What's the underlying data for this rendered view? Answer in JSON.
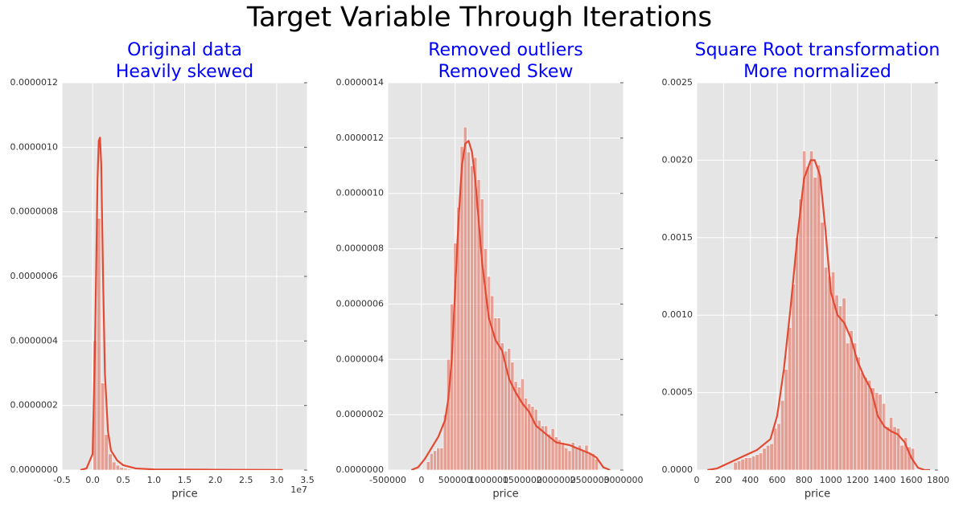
{
  "title": "Target Variable Through Iterations",
  "chart_data": [
    {
      "type": "histogram",
      "title": [
        "Original data",
        "Heavily skewed"
      ],
      "title_color": "#0000ff",
      "xlabel": "price",
      "x_offset_label": "1e7",
      "bins": [
        0.0075,
        0.0695,
        0.1315,
        0.1935,
        0.2555,
        0.3175,
        0.3795,
        0.4415,
        0.5035,
        0.5655,
        0.6275,
        0.6895,
        0.7515,
        0.8135,
        0.8755,
        0.9375,
        0.9995,
        1.0615,
        1.1235,
        1.1855,
        1.2475,
        1.3095,
        1.3715,
        1.4335,
        1.4955,
        1.5575,
        1.6195,
        1.6815,
        1.7435,
        1.8055,
        1.8675,
        1.9295,
        1.9915,
        2.0535,
        2.1155,
        2.1775,
        2.2395,
        2.3015,
        2.3635,
        2.4255,
        2.4875,
        2.5495,
        2.6115,
        2.6735,
        2.7355,
        2.7975,
        2.8595,
        2.9215,
        2.9835,
        3.0455,
        3.1075
      ],
      "values": [
        4e-07,
        7.8e-07,
        2.7e-07,
        1.1e-07,
        5e-08,
        2.5e-08,
        1.5e-08,
        8e-09,
        5e-09,
        3e-09,
        2e-09,
        1.5e-09,
        1e-09,
        1e-09,
        5e-10,
        5e-10,
        5e-10,
        3e-10,
        3e-10,
        2e-10,
        2e-10,
        1e-10,
        1e-10,
        1e-10,
        1e-10,
        0,
        0,
        0,
        0,
        0,
        0,
        0,
        0,
        0,
        0,
        0,
        0,
        0,
        0,
        0,
        0,
        0,
        0,
        0,
        0,
        0,
        0,
        0,
        0,
        1e-10
      ],
      "color": "#e24a33",
      "kde": {
        "x": [
          -0.2,
          -0.1,
          0,
          0.04,
          0.08,
          0.1,
          0.12,
          0.14,
          0.17,
          0.2,
          0.25,
          0.3,
          0.4,
          0.5,
          0.7,
          1,
          2,
          3.1
        ],
        "y": [
          0,
          5e-09,
          5e-08,
          4e-07,
          9e-07,
          1.02e-06,
          1.03e-06,
          9.5e-07,
          6e-07,
          3e-07,
          1.2e-07,
          6e-08,
          3e-08,
          1.5e-08,
          5e-09,
          2e-09,
          1e-09,
          5e-10
        ],
        "color": "#e24a33"
      },
      "xlim": [
        -0.5,
        3.5
      ],
      "ylim": [
        0,
        1.2e-06
      ],
      "xticks": [
        -0.5,
        {
          "value": 0,
          "label": "0.0"
        },
        0.5,
        {
          "value": 1,
          "label": "1.0"
        },
        1.5,
        {
          "value": 2,
          "label": "2.0"
        },
        2.5,
        {
          "value": 3,
          "label": "3.0"
        },
        3.5
      ],
      "yticks": [
        {
          "value": 0,
          "label": "0.0000000"
        },
        {
          "value": 2e-07,
          "label": "0.0000002"
        },
        {
          "value": 4e-07,
          "label": "0.0000004"
        },
        {
          "value": 6e-07,
          "label": "0.0000006"
        },
        {
          "value": 8e-07,
          "label": "0.0000008"
        },
        {
          "value": 1e-06,
          "label": "0.0000010"
        },
        {
          "value": 1.2e-06,
          "label": "0.0000012"
        }
      ],
      "grid": true
    },
    {
      "type": "histogram",
      "title": [
        "Removed outliers",
        "Removed Skew"
      ],
      "title_color": "#0000ff",
      "xlabel": "price",
      "bins": [
        75000,
        125000,
        175000,
        225000,
        275000,
        325000,
        375000,
        425000,
        475000,
        525000,
        575000,
        625000,
        675000,
        725000,
        775000,
        825000,
        875000,
        925000,
        975000,
        1025000,
        1075000,
        1125000,
        1175000,
        1225000,
        1275000,
        1325000,
        1375000,
        1425000,
        1475000,
        1525000,
        1575000,
        1625000,
        1675000,
        1725000,
        1775000,
        1825000,
        1875000,
        1925000,
        1975000,
        2025000,
        2075000,
        2125000,
        2175000,
        2225000,
        2275000,
        2325000,
        2375000,
        2425000,
        2475000,
        2525000,
        2575000,
        2625000
      ],
      "values": [
        3e-08,
        6e-08,
        7e-08,
        8e-08,
        8e-08,
        2e-07,
        4e-07,
        6e-07,
        8.2e-07,
        9.5e-07,
        1.17e-06,
        1.24e-06,
        1.15e-06,
        1.1e-06,
        1.13e-06,
        1.05e-06,
        9.8e-07,
        8e-07,
        7e-07,
        6.3e-07,
        5.5e-07,
        5.5e-07,
        4.6e-07,
        4.3e-07,
        4.4e-07,
        3.9e-07,
        3.2e-07,
        3e-07,
        3.3e-07,
        2.6e-07,
        2.4e-07,
        2.3e-07,
        2.2e-07,
        1.8e-07,
        1.6e-07,
        1.6e-07,
        1.3e-07,
        1.5e-07,
        1.2e-07,
        1.1e-07,
        1e-07,
        8e-08,
        7e-08,
        1e-07,
        8e-08,
        9e-08,
        7e-08,
        9e-08,
        6e-08,
        6e-08,
        4e-08
      ],
      "color": "#e24a33",
      "kde": {
        "x": [
          -150000,
          -50000,
          50000,
          150000,
          250000,
          350000,
          400000,
          450000,
          500000,
          550000,
          600000,
          650000,
          700000,
          750000,
          800000,
          900000,
          1000000,
          1100000,
          1200000,
          1300000,
          1400000,
          1500000,
          1600000,
          1700000,
          1800000,
          1900000,
          2000000,
          2100000,
          2200000,
          2300000,
          2400000,
          2500000,
          2600000,
          2700000,
          2800000
        ],
        "y": [
          0,
          1e-08,
          4e-08,
          8e-08,
          1.2e-07,
          1.8e-07,
          2.6e-07,
          4e-07,
          6.5e-07,
          9e-07,
          1.1e-06,
          1.18e-06,
          1.19e-06,
          1.15e-06,
          1.05e-06,
          7.5e-07,
          5.5e-07,
          4.7e-07,
          4.3e-07,
          3.3e-07,
          2.8e-07,
          2.4e-07,
          2.1e-07,
          1.6e-07,
          1.4e-07,
          1.2e-07,
          1e-07,
          9.5e-08,
          9e-08,
          8e-08,
          7e-08,
          6e-08,
          4.5e-08,
          1e-08,
          0
        ],
        "color": "#e24a33"
      },
      "xlim": [
        -500000,
        3000000
      ],
      "ylim": [
        0,
        1.4e-06
      ],
      "xticks": [
        -500000,
        0,
        500000,
        1000000,
        1500000,
        2000000,
        2500000,
        3000000
      ],
      "yticks": [
        {
          "value": 0,
          "label": "0.0000000"
        },
        {
          "value": 2e-07,
          "label": "0.0000002"
        },
        {
          "value": 4e-07,
          "label": "0.0000004"
        },
        {
          "value": 6e-07,
          "label": "0.0000006"
        },
        {
          "value": 8e-07,
          "label": "0.0000008"
        },
        {
          "value": 1e-06,
          "label": "0.0000010"
        },
        {
          "value": 1.2e-06,
          "label": "0.0000012"
        },
        {
          "value": 1.4e-06,
          "label": "0.0000014"
        }
      ],
      "grid": true
    },
    {
      "type": "histogram",
      "title": [
        "Square Root transformation",
        "More normalized"
      ],
      "title_color": "#0000ff",
      "xlabel": "price",
      "bins": [
        275,
        302,
        329,
        356,
        383,
        410,
        437,
        464,
        491,
        518,
        545,
        572,
        599,
        626,
        653,
        680,
        707,
        734,
        761,
        788,
        815,
        842,
        869,
        896,
        923,
        950,
        977,
        1004,
        1031,
        1058,
        1085,
        1112,
        1139,
        1166,
        1193,
        1220,
        1247,
        1274,
        1301,
        1328,
        1355,
        1382,
        1409,
        1436,
        1463,
        1490,
        1517,
        1544,
        1571,
        1598,
        1625
      ],
      "values": [
        5e-05,
        6e-05,
        7e-05,
        8e-05,
        8e-05,
        9e-05,
        0.0001,
        0.00011,
        0.00014,
        0.00016,
        0.00017,
        0.00027,
        0.0003,
        0.00045,
        0.00065,
        0.00092,
        0.0012,
        0.0015,
        0.00175,
        0.00206,
        0.00196,
        0.00206,
        0.00189,
        0.00197,
        0.0016,
        0.00131,
        0.00125,
        0.00128,
        0.00113,
        0.00106,
        0.00111,
        0.00082,
        0.0009,
        0.00082,
        0.00073,
        0.00063,
        0.0006,
        0.00058,
        0.00053,
        0.0005,
        0.00049,
        0.00043,
        0.00028,
        0.00034,
        0.00028,
        0.00027,
        0.00016,
        0.00021,
        0.00015,
        0.00014
      ],
      "color": "#e24a33",
      "kde": {
        "x": [
          80,
          150,
          250,
          350,
          450,
          550,
          600,
          650,
          700,
          750,
          800,
          850,
          880,
          920,
          960,
          1000,
          1050,
          1100,
          1150,
          1200,
          1250,
          1300,
          1350,
          1400,
          1450,
          1500,
          1550,
          1600,
          1650,
          1700,
          1740
        ],
        "y": [
          0,
          1e-05,
          5e-05,
          9e-05,
          0.00013,
          0.0002,
          0.00035,
          0.00065,
          0.00105,
          0.0015,
          0.00188,
          0.002,
          0.002,
          0.0019,
          0.00155,
          0.00115,
          0.001,
          0.00095,
          0.00085,
          0.0007,
          0.0006,
          0.00052,
          0.00035,
          0.00028,
          0.00025,
          0.00023,
          0.00018,
          8e-05,
          1.5e-05,
          0,
          0
        ],
        "color": "#e24a33"
      },
      "xlim": [
        0,
        1800
      ],
      "ylim": [
        0,
        0.0025
      ],
      "xticks": [
        0,
        200,
        400,
        600,
        800,
        1000,
        1200,
        1400,
        1600,
        1800
      ],
      "yticks": [
        {
          "value": 0,
          "label": "0.0000"
        },
        {
          "value": 0.0005,
          "label": "0.0005"
        },
        {
          "value": 0.001,
          "label": "0.0010"
        },
        {
          "value": 0.0015,
          "label": "0.0015"
        },
        {
          "value": 0.002,
          "label": "0.0020"
        },
        {
          "value": 0.0025,
          "label": "0.0025"
        }
      ],
      "grid": true
    }
  ]
}
